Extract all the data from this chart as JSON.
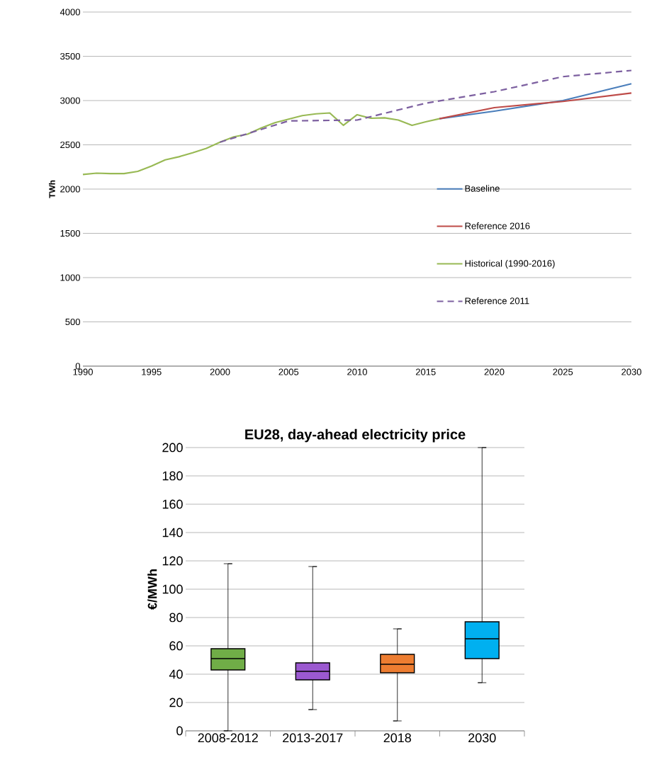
{
  "chart_data": [
    {
      "type": "line",
      "ylabel": "TWh",
      "xlim": [
        1990,
        2030
      ],
      "ylim": [
        0,
        4000
      ],
      "xticks": [
        1990,
        1995,
        2000,
        2005,
        2010,
        2015,
        2020,
        2025,
        2030
      ],
      "yticks": [
        0,
        500,
        1000,
        1500,
        2000,
        2500,
        3000,
        3500,
        4000
      ],
      "grid": "y",
      "legend": "right",
      "line_style": "solid",
      "series": [
        {
          "name": "Baseline",
          "color": "#4a7ebb",
          "x": [
            2016,
            2020,
            2025,
            2030
          ],
          "values": [
            2795,
            2880,
            3000,
            3190
          ]
        },
        {
          "name": "Reference 2016",
          "color": "#be4b48",
          "x": [
            2016,
            2020,
            2025,
            2030
          ],
          "values": [
            2795,
            2920,
            2990,
            3085
          ]
        },
        {
          "name": "Historical (1990-2016)",
          "color": "#98b954",
          "x": [
            1990,
            1991,
            1992,
            1993,
            1994,
            1995,
            1996,
            1997,
            1998,
            1999,
            2000,
            2001,
            2002,
            2003,
            2004,
            2005,
            2006,
            2007,
            2008,
            2009,
            2010,
            2011,
            2012,
            2013,
            2014,
            2015,
            2016
          ],
          "values": [
            2165,
            2180,
            2175,
            2175,
            2200,
            2260,
            2330,
            2365,
            2410,
            2460,
            2530,
            2590,
            2620,
            2690,
            2750,
            2790,
            2830,
            2850,
            2860,
            2720,
            2840,
            2800,
            2805,
            2780,
            2720,
            2760,
            2795
          ]
        },
        {
          "name": "Reference 2011",
          "color": "#7d60a0",
          "line_style": "dashed",
          "x": [
            2000,
            2005,
            2010,
            2015,
            2020,
            2025,
            2030
          ],
          "values": [
            2530,
            2770,
            2780,
            2970,
            3100,
            3270,
            3340
          ]
        }
      ]
    },
    {
      "type": "box",
      "title": "EU28, day-ahead electricity price",
      "ylabel": "€/MWh",
      "categories": [
        "2008-2012",
        "2013-2017",
        "2018",
        "2030"
      ],
      "colors": [
        "#70ad47",
        "#9b59d0",
        "#ed7d31",
        "#00b0f0"
      ],
      "ylim": [
        0,
        200
      ],
      "yticks": [
        0,
        20,
        40,
        60,
        80,
        100,
        120,
        140,
        160,
        180,
        200
      ],
      "grid": "y",
      "boxes": [
        {
          "low": 0,
          "q1": 43,
          "median": 51,
          "q3": 58,
          "high": 118
        },
        {
          "low": 15,
          "q1": 36,
          "median": 42,
          "q3": 48,
          "high": 116
        },
        {
          "low": 7,
          "q1": 41,
          "median": 47,
          "q3": 54,
          "high": 72
        },
        {
          "low": 34,
          "q1": 51,
          "median": 65,
          "q3": 77,
          "high": 200
        }
      ]
    }
  ]
}
